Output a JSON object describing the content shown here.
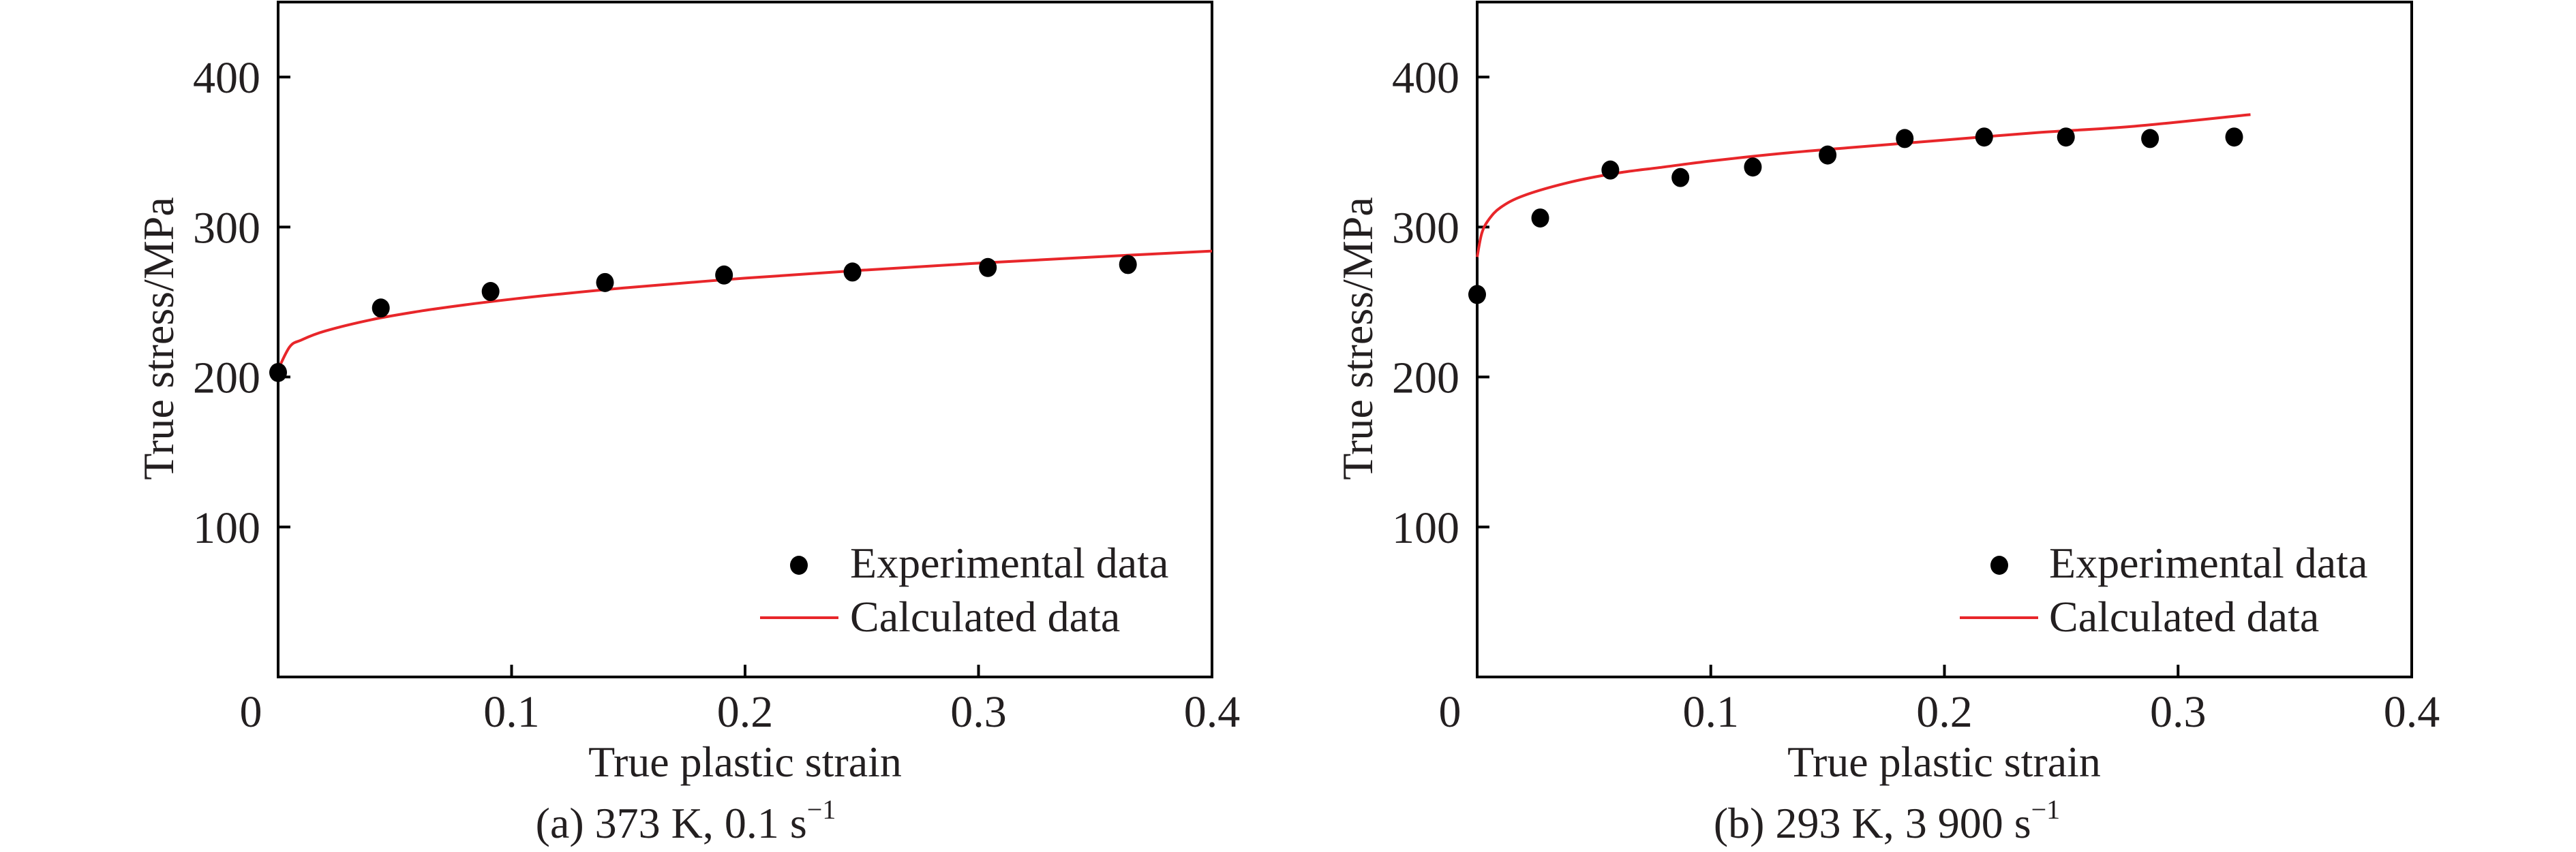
{
  "colors": {
    "axis": "#000000",
    "text": "#231f20",
    "calculated_line": "#e8262a",
    "experimental_marker": "#000000"
  },
  "chart_data": [
    {
      "type": "scatter",
      "panel": "a",
      "caption": {
        "main": "(a) 373 K, 0.1 s",
        "superscript": "−1"
      },
      "xlabel": "True plastic strain",
      "ylabel": "True stress/MPa",
      "xlim": [
        0,
        0.4
      ],
      "ylim": [
        0,
        450
      ],
      "xticks": [
        0,
        0.1,
        0.2,
        0.3,
        0.4
      ],
      "xtick_labels": [
        "0",
        "0.1",
        "0.2",
        "0.3",
        "0.4"
      ],
      "yticks": [
        100,
        200,
        300,
        400
      ],
      "ytick_labels": [
        "100",
        "200",
        "300",
        "400"
      ],
      "grid": false,
      "legend_position": "bottom-right",
      "series": [
        {
          "name": "Experimental data",
          "kind": "scatter",
          "x": [
            0.0,
            0.044,
            0.091,
            0.14,
            0.191,
            0.246,
            0.304,
            0.364
          ],
          "y": [
            203,
            246,
            257,
            263,
            268,
            270,
            273,
            275
          ]
        },
        {
          "name": "Calculated data",
          "kind": "line",
          "x": [
            0.0,
            0.005,
            0.01,
            0.02,
            0.04,
            0.06,
            0.08,
            0.1,
            0.12,
            0.15,
            0.2,
            0.25,
            0.3,
            0.35,
            0.4
          ],
          "y": [
            205,
            220.2,
            224.7,
            230.6,
            238.2,
            243.7,
            248.1,
            251.9,
            255.2,
            259.6,
            265.9,
            271.2,
            275.9,
            280.1,
            284.0
          ]
        }
      ]
    },
    {
      "type": "scatter",
      "panel": "b",
      "caption": {
        "main": "(b) 293 K, 3 900 s",
        "superscript": "−1"
      },
      "xlabel": "True plastic strain",
      "ylabel": "True stress/MPa",
      "xlim": [
        0,
        0.4
      ],
      "ylim": [
        0,
        450
      ],
      "xticks": [
        0,
        0.1,
        0.2,
        0.3,
        0.4
      ],
      "xtick_labels": [
        "0",
        "0.1",
        "0.2",
        "0.3",
        "0.4"
      ],
      "yticks": [
        100,
        200,
        300,
        400
      ],
      "ytick_labels": [
        "100",
        "200",
        "300",
        "400"
      ],
      "grid": false,
      "legend_position": "bottom-right",
      "series": [
        {
          "name": "Experimental data",
          "kind": "scatter",
          "x": [
            0.0,
            0.027,
            0.057,
            0.087,
            0.118,
            0.15,
            0.183,
            0.217,
            0.252,
            0.288,
            0.324
          ],
          "y": [
            255,
            306,
            338,
            333,
            340,
            348,
            359,
            360,
            360,
            359,
            360
          ]
        },
        {
          "name": "Calculated data",
          "kind": "line",
          "x": [
            0.0,
            0.002,
            0.005,
            0.01,
            0.02,
            0.04,
            0.06,
            0.08,
            0.1,
            0.13,
            0.16,
            0.2,
            0.24,
            0.28,
            0.331
          ],
          "y": [
            280,
            296,
            305,
            313,
            321,
            330,
            336,
            340,
            344,
            349,
            353,
            358,
            363,
            367,
            375
          ]
        }
      ]
    }
  ]
}
